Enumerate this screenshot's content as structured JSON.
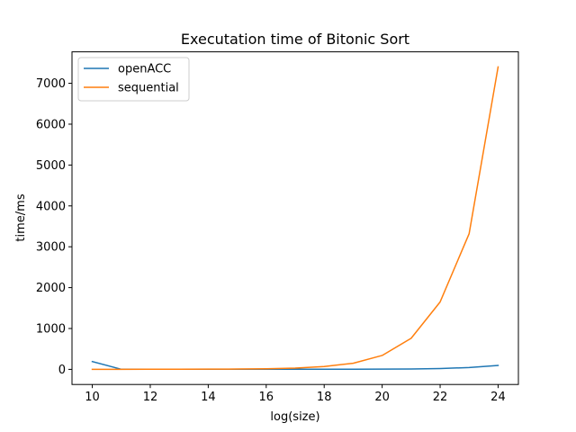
{
  "chart_data": {
    "type": "line",
    "title": "Executation time of Bitonic Sort",
    "xlabel": "log(size)",
    "ylabel": "time/ms",
    "x": [
      10,
      11,
      12,
      13,
      14,
      15,
      16,
      17,
      18,
      19,
      20,
      21,
      22,
      23,
      24
    ],
    "series": [
      {
        "name": "openACC",
        "color": "#1f77b4",
        "values": [
          190,
          2,
          2,
          2,
          2,
          2,
          2,
          2,
          3,
          4,
          6,
          10,
          20,
          45,
          95
        ]
      },
      {
        "name": "sequential",
        "color": "#ff7f0e",
        "values": [
          1,
          1,
          2,
          3,
          5,
          8,
          15,
          30,
          70,
          150,
          340,
          760,
          1650,
          3320,
          7400
        ]
      }
    ],
    "xlim": [
      9.3,
      24.7
    ],
    "ylim": [
      -370,
      7770
    ],
    "x_ticks": [
      10,
      12,
      14,
      16,
      18,
      20,
      22,
      24
    ],
    "y_ticks": [
      0,
      1000,
      2000,
      3000,
      4000,
      5000,
      6000,
      7000
    ],
    "grid": false,
    "legend_position": "top-left"
  }
}
